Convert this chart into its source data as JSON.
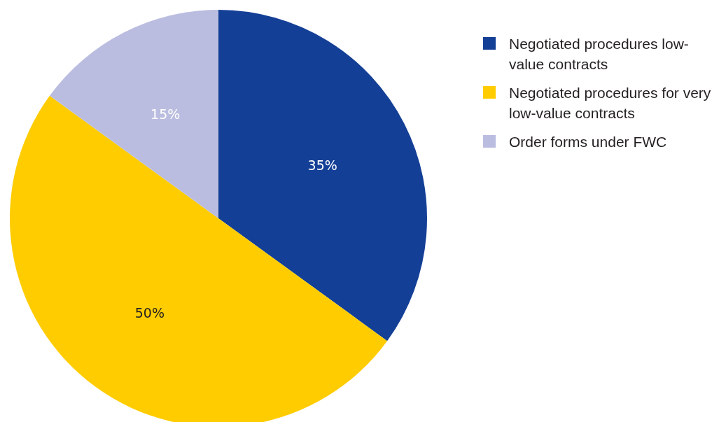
{
  "chart_data": {
    "type": "pie",
    "categories": [
      "Negotiated procedures low-value contracts",
      "Negotiated procedures for very low-value contracts",
      "Order forms under FWC"
    ],
    "values": [
      35,
      50,
      15
    ],
    "colors": [
      "#143f96",
      "#ffcc00",
      "#bbbde0"
    ],
    "value_labels": [
      "35%",
      "50%",
      "15%"
    ],
    "legend": "top right"
  }
}
